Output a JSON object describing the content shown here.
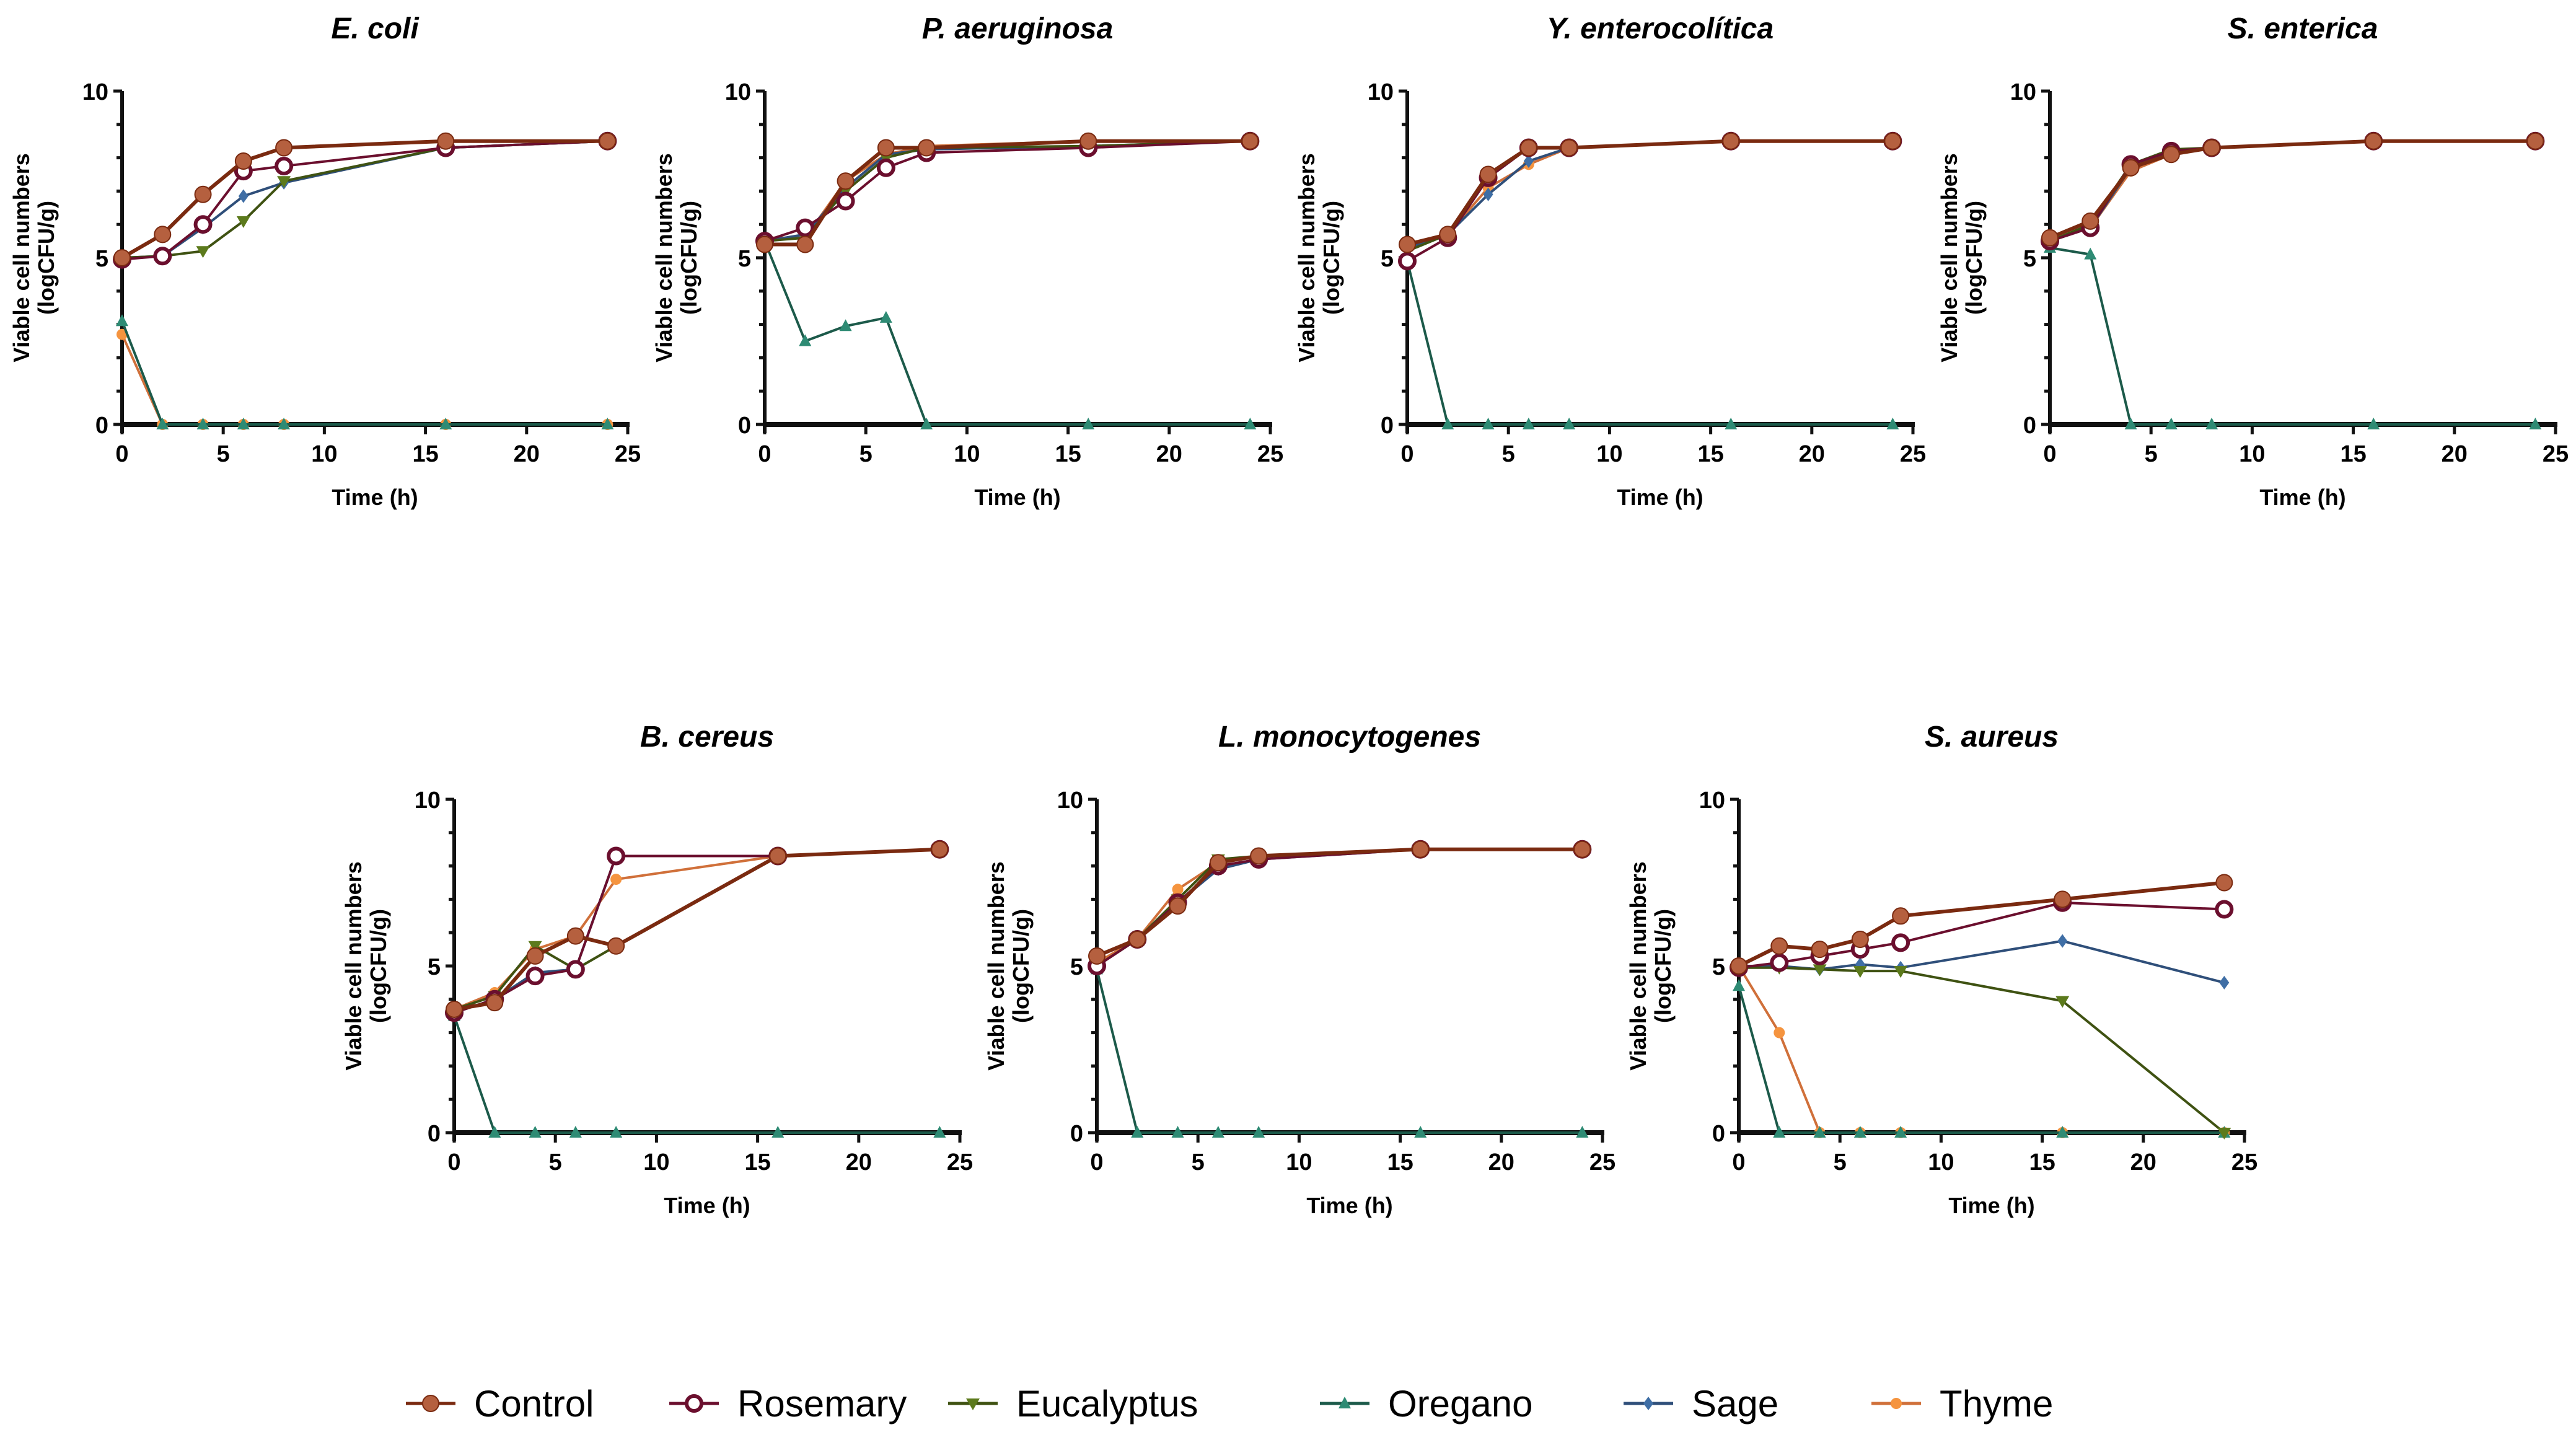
{
  "chart_data": {
    "type": "line",
    "xlabel": "Time (h)",
    "ylabel_line1": "Viable cell numbers",
    "ylabel_line2": "(logCFU/g)",
    "xlim": [
      0,
      25
    ],
    "ylim": [
      0,
      10
    ],
    "xticks": [
      "0",
      "5",
      "10",
      "15",
      "20",
      "25"
    ],
    "yticks": [
      "0",
      "5",
      "10"
    ],
    "x": [
      0,
      2,
      4,
      6,
      8,
      16,
      24
    ],
    "legend_placement": "bottom",
    "series_styles": [
      {
        "name": "Control",
        "line": "#7a2a10",
        "marker": "#b5603f",
        "shape": "circle"
      },
      {
        "name": "Rosemary",
        "line": "#6b0f2e",
        "marker": "#6b0f2e",
        "shape": "open-circle"
      },
      {
        "name": "Eucalyptus",
        "line": "#3f5212",
        "marker": "#5c7a1c",
        "shape": "triangle-down"
      },
      {
        "name": "Oregano",
        "line": "#1c5a4a",
        "marker": "#2e8b74",
        "shape": "triangle-up"
      },
      {
        "name": "Sage",
        "line": "#2f4f7a",
        "marker": "#3f6ea5",
        "shape": "diamond"
      },
      {
        "name": "Thyme",
        "line": "#d0703a",
        "marker": "#f5943f",
        "shape": "small-circle"
      }
    ],
    "panels": [
      {
        "title": "E. coli",
        "series": [
          {
            "name": "Control",
            "values": [
              5.0,
              5.7,
              6.9,
              7.9,
              8.3,
              8.5,
              8.5
            ]
          },
          {
            "name": "Rosemary",
            "values": [
              4.95,
              5.05,
              6.0,
              7.6,
              7.75,
              8.3,
              8.5
            ]
          },
          {
            "name": "Eucalyptus",
            "values": [
              5.0,
              5.05,
              5.2,
              6.1,
              7.3,
              8.3,
              8.5
            ]
          },
          {
            "name": "Oregano",
            "values": [
              3.1,
              0,
              0,
              0,
              0,
              0,
              0
            ]
          },
          {
            "name": "Sage",
            "values": [
              5.0,
              5.05,
              5.9,
              6.85,
              7.25,
              8.3,
              8.5
            ]
          },
          {
            "name": "Thyme",
            "values": [
              2.7,
              0,
              0,
              0,
              0,
              0,
              0
            ]
          }
        ]
      },
      {
        "title": "P. aeruginosa",
        "series": [
          {
            "name": "Control",
            "values": [
              5.4,
              5.4,
              7.3,
              8.3,
              8.3,
              8.5,
              8.5
            ]
          },
          {
            "name": "Rosemary",
            "values": [
              5.5,
              5.9,
              6.7,
              7.7,
              8.15,
              8.3,
              8.5
            ]
          },
          {
            "name": "Eucalyptus",
            "values": [
              5.5,
              5.6,
              7.0,
              8.0,
              8.3,
              8.35,
              8.5
            ]
          },
          {
            "name": "Oregano",
            "values": [
              5.5,
              2.5,
              2.95,
              3.2,
              0,
              0,
              0
            ]
          },
          {
            "name": "Sage",
            "values": [
              5.5,
              5.7,
              7.1,
              8.1,
              8.25,
              8.35,
              8.5
            ]
          },
          {
            "name": "Thyme",
            "values": [
              5.6,
              5.6,
              7.3,
              8.1,
              8.35,
              8.5,
              8.5
            ]
          }
        ]
      },
      {
        "title": "Y. enterocolítica",
        "series": [
          {
            "name": "Control",
            "values": [
              5.4,
              5.7,
              7.5,
              8.3,
              8.3,
              8.5,
              8.5
            ]
          },
          {
            "name": "Rosemary",
            "values": [
              4.9,
              5.6,
              7.4,
              8.3,
              8.3,
              8.5,
              8.5
            ]
          },
          {
            "name": "Eucalyptus",
            "values": [
              5.2,
              5.7,
              7.5,
              8.3,
              8.3,
              8.5,
              8.5
            ]
          },
          {
            "name": "Oregano",
            "values": [
              4.9,
              0,
              0,
              0,
              0,
              0,
              0
            ]
          },
          {
            "name": "Sage",
            "values": [
              5.3,
              5.7,
              6.9,
              7.9,
              8.3,
              8.5,
              8.5
            ]
          },
          {
            "name": "Thyme",
            "values": [
              5.4,
              5.7,
              7.1,
              7.8,
              8.3,
              8.5,
              8.5
            ]
          }
        ]
      },
      {
        "title": "S. enterica",
        "series": [
          {
            "name": "Control",
            "values": [
              5.6,
              6.1,
              7.7,
              8.1,
              8.3,
              8.5,
              8.5
            ]
          },
          {
            "name": "Rosemary",
            "values": [
              5.5,
              5.9,
              7.8,
              8.2,
              8.3,
              8.5,
              8.5
            ]
          },
          {
            "name": "Eucalyptus",
            "values": [
              5.5,
              6.0,
              7.8,
              8.25,
              8.3,
              8.5,
              8.5
            ]
          },
          {
            "name": "Oregano",
            "values": [
              5.3,
              5.1,
              0,
              0,
              0,
              0,
              0
            ]
          },
          {
            "name": "Sage",
            "values": [
              5.5,
              5.9,
              7.7,
              8.2,
              8.3,
              8.5,
              8.5
            ]
          },
          {
            "name": "Thyme",
            "values": [
              5.5,
              5.9,
              7.6,
              8.1,
              8.3,
              8.5,
              8.5
            ]
          }
        ]
      },
      {
        "title": "B. cereus",
        "series": [
          {
            "name": "Control",
            "values": [
              3.7,
              3.9,
              5.3,
              5.9,
              5.6,
              8.3,
              8.5
            ]
          },
          {
            "name": "Rosemary",
            "values": [
              3.6,
              4.0,
              4.7,
              4.9,
              8.3,
              8.3,
              8.5
            ]
          },
          {
            "name": "Eucalyptus",
            "values": [
              3.7,
              4.1,
              5.6,
              4.9,
              5.6,
              8.3,
              8.5
            ]
          },
          {
            "name": "Oregano",
            "values": [
              3.5,
              0,
              0,
              0,
              0,
              0,
              0
            ]
          },
          {
            "name": "Sage",
            "values": [
              3.6,
              4.0,
              4.8,
              4.9,
              8.3,
              8.3,
              8.5
            ]
          },
          {
            "name": "Thyme",
            "values": [
              3.7,
              4.2,
              5.5,
              5.9,
              7.6,
              8.3,
              8.5
            ]
          }
        ]
      },
      {
        "title": "L. monocytogenes",
        "series": [
          {
            "name": "Control",
            "values": [
              5.3,
              5.8,
              6.8,
              8.1,
              8.3,
              8.5,
              8.5
            ]
          },
          {
            "name": "Rosemary",
            "values": [
              5.0,
              5.8,
              6.9,
              8.0,
              8.2,
              8.5,
              8.5
            ]
          },
          {
            "name": "Eucalyptus",
            "values": [
              5.0,
              5.8,
              7.0,
              8.2,
              8.3,
              8.5,
              8.5
            ]
          },
          {
            "name": "Oregano",
            "values": [
              4.9,
              0,
              0,
              0,
              0,
              0,
              0
            ]
          },
          {
            "name": "Sage",
            "values": [
              5.0,
              5.8,
              6.9,
              7.9,
              8.2,
              8.5,
              8.5
            ]
          },
          {
            "name": "Thyme",
            "values": [
              5.1,
              5.8,
              7.3,
              8.1,
              8.3,
              8.5,
              8.5
            ]
          }
        ]
      },
      {
        "title": "S. aureus",
        "series": [
          {
            "name": "Control",
            "values": [
              5.0,
              5.6,
              5.5,
              5.8,
              6.5,
              7.0,
              7.5
            ]
          },
          {
            "name": "Rosemary",
            "values": [
              4.95,
              5.1,
              5.3,
              5.5,
              5.7,
              6.9,
              6.7
            ]
          },
          {
            "name": "Eucalyptus",
            "values": [
              4.95,
              4.95,
              4.9,
              4.85,
              4.85,
              3.95,
              0
            ]
          },
          {
            "name": "Oregano",
            "values": [
              4.4,
              0,
              0,
              0,
              0,
              0,
              0
            ]
          },
          {
            "name": "Sage",
            "values": [
              5.0,
              5.0,
              4.9,
              5.05,
              4.95,
              5.75,
              4.5
            ]
          },
          {
            "name": "Thyme",
            "values": [
              5.0,
              3.0,
              0,
              0,
              0,
              0,
              0
            ]
          }
        ]
      }
    ]
  }
}
